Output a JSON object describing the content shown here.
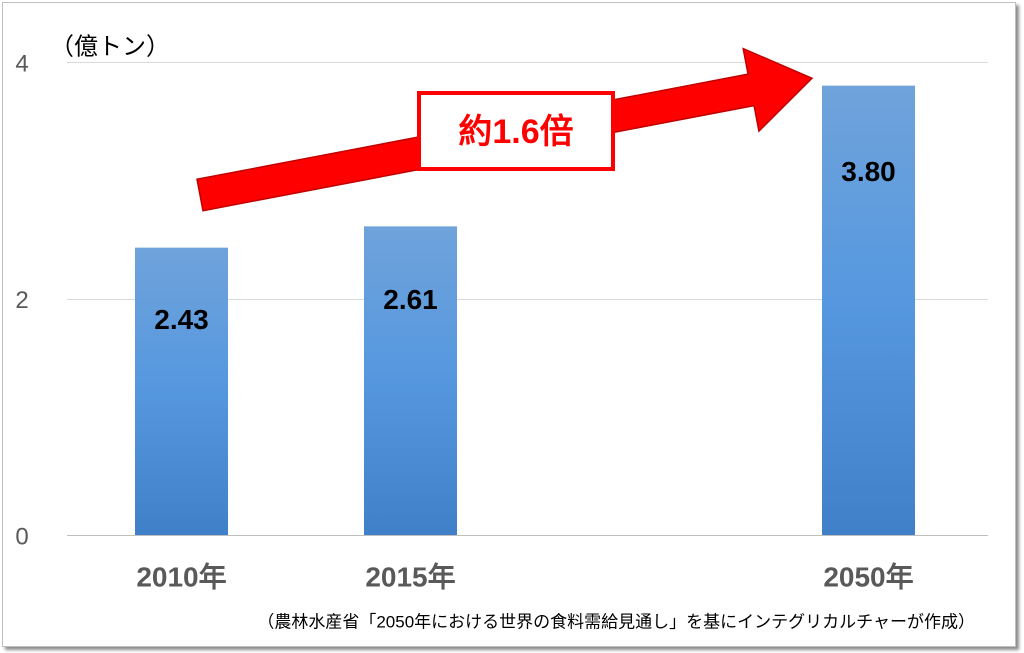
{
  "chart_data": {
    "type": "bar",
    "ylabel": "（億トン）",
    "categories": [
      "2010年",
      "2015年",
      "2050年"
    ],
    "values": [
      2.43,
      2.61,
      3.8
    ],
    "data_labels": [
      "2.43",
      "2.61",
      "3.80"
    ],
    "yticks": [
      0,
      2,
      4
    ],
    "ylim": [
      0,
      4
    ],
    "grid": true,
    "legend": false,
    "annotation": {
      "text": "約1.6倍",
      "arrow": true
    }
  },
  "source_note": "（農林水産省「2050年における世界の食料需給見通し」を基にインテグリカルチャーが作成）",
  "colors": {
    "bar_top": "#6FA3DB",
    "bar_mid": "#5597DF",
    "bar_bottom": "#4080C8",
    "arrow": "#FF0000",
    "annotation": "#FF0000",
    "axis_text": "#595959",
    "gridline": "#D9D9D9",
    "axis_line": "#BFBFBF"
  }
}
